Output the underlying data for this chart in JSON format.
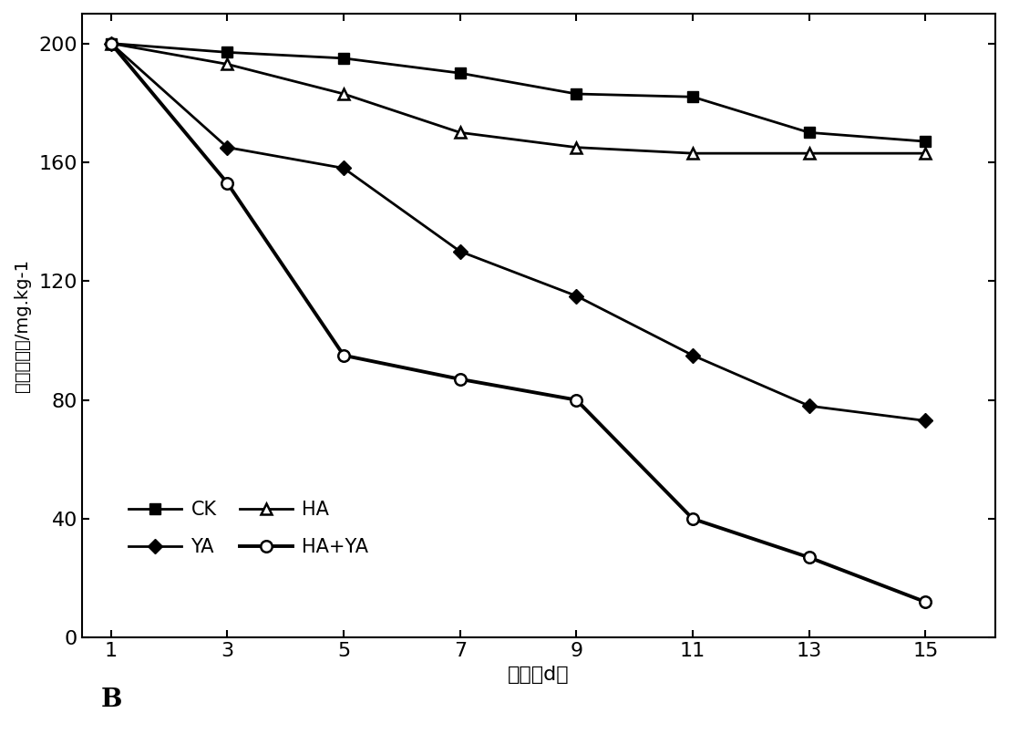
{
  "x": [
    1,
    3,
    5,
    7,
    9,
    11,
    13,
    15
  ],
  "CK": [
    200,
    197,
    195,
    190,
    183,
    182,
    170,
    167
  ],
  "YA": [
    200,
    165,
    158,
    130,
    115,
    95,
    78,
    73
  ],
  "HA": [
    200,
    193,
    183,
    170,
    165,
    163,
    163,
    163
  ],
  "HA_YA": [
    200,
    153,
    95,
    87,
    80,
    40,
    27,
    12
  ],
  "xlabel": "时间（d）",
  "ylabel": "污染物浓度/mg.kg-1",
  "label_B": "B",
  "legend_CK": "CK",
  "legend_YA": "YA",
  "legend_HA": "HA",
  "legend_HAYA": "HA+YA",
  "ylim": [
    0,
    210
  ],
  "xlim": [
    0.5,
    16.2
  ],
  "yticks": [
    0,
    40,
    80,
    120,
    160,
    200
  ],
  "xticks": [
    1,
    3,
    5,
    7,
    9,
    11,
    13,
    15
  ],
  "line_color": "#000000",
  "bg_color": "#ffffff",
  "linewidth": 2.0,
  "markersize": 9
}
